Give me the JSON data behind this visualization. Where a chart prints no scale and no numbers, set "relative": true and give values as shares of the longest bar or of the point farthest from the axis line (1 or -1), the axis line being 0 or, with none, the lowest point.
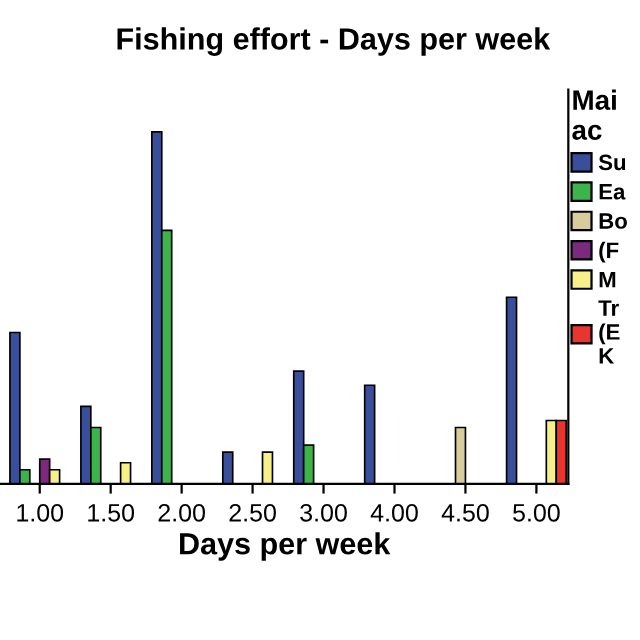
{
  "chart_data": {
    "type": "bar",
    "title": "Fishing effort - Days per week",
    "xlabel": "Days per week",
    "relative": true,
    "legend_title": "Mai\nac",
    "legend": "right",
    "categories": [
      "1.00",
      "1.50",
      "2.00",
      "2.50",
      "3.00",
      "4.00",
      "4.50",
      "5.00"
    ],
    "series": [
      {
        "name": "Su",
        "color": "#3a4f9c",
        "values": [
          0.43,
          0.22,
          1.0,
          0.09,
          0.32,
          0.28,
          null,
          0.53
        ]
      },
      {
        "name": "Ea",
        "color": "#3cb44a",
        "values": [
          0.04,
          0.16,
          0.72,
          null,
          0.11,
          null,
          null,
          null
        ]
      },
      {
        "name": "Bo",
        "color": "#d8cc9a",
        "values": [
          null,
          null,
          null,
          null,
          null,
          null,
          0.16,
          null
        ]
      },
      {
        "name": "(F",
        "color": "#7b2a7e",
        "values": [
          0.07,
          null,
          null,
          null,
          null,
          null,
          null,
          null
        ]
      },
      {
        "name": "M",
        "color": "#f6f08a",
        "values": [
          0.04,
          0.06,
          null,
          0.09,
          null,
          null,
          null,
          0.18
        ]
      },
      {
        "name": "Tr\n(E\nK",
        "color": "#e8352e",
        "values": [
          null,
          null,
          null,
          null,
          null,
          null,
          null,
          0.18
        ]
      }
    ]
  }
}
